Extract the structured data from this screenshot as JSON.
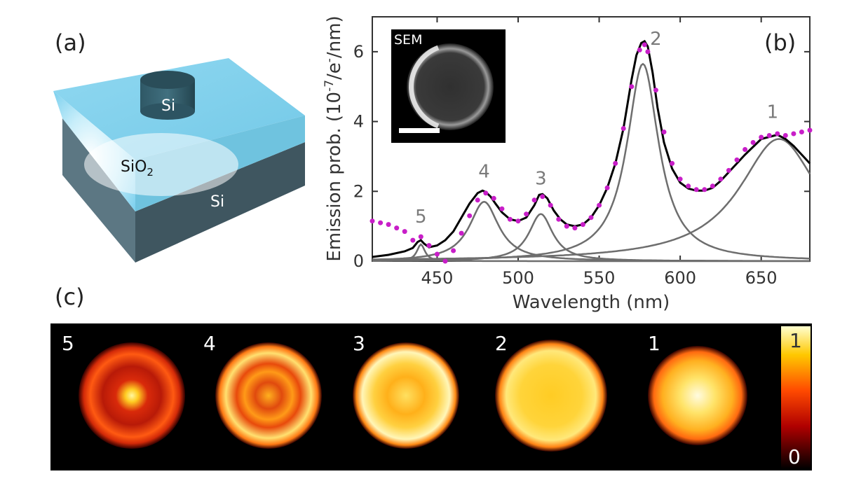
{
  "panels": {
    "a": "(a)",
    "b": "(b)",
    "c": "(c)"
  },
  "schematic": {
    "pillar_label": "Si",
    "oxide_label_main": "SiO",
    "oxide_label_sub": "2",
    "substrate_label": "Si"
  },
  "inset": {
    "label": "SEM"
  },
  "colors": {
    "data": "#c81ec8",
    "fit": "#000000",
    "components": "#6e6e6e",
    "oxide": "#7fd0ec",
    "substrate": "#4c6470"
  },
  "chart_data": {
    "type": "line",
    "title": "",
    "xlabel": "Wavelength (nm)",
    "ylabel_parts": {
      "main": "Emission prob. (10",
      "sup1": "-7",
      "mid": "/e",
      "sup2": "-",
      "end": "/nm)"
    },
    "xlim": [
      410,
      680
    ],
    "ylim": [
      0,
      7
    ],
    "xticks": [
      450,
      500,
      550,
      600,
      650
    ],
    "yticks": [
      0,
      2,
      4,
      6
    ],
    "peaks": [
      {
        "id": "1",
        "center": 661,
        "amplitude": 3.5,
        "width": 30
      },
      {
        "id": "2",
        "center": 577,
        "amplitude": 5.65,
        "width": 12
      },
      {
        "id": "3",
        "center": 514,
        "amplitude": 1.35,
        "width": 9
      },
      {
        "id": "4",
        "center": 479,
        "amplitude": 1.7,
        "width": 11
      },
      {
        "id": "5",
        "center": 440,
        "amplitude": 0.48,
        "width": 3
      }
    ],
    "peak_labels": [
      {
        "text": "1",
        "x": 657,
        "y": 4.1
      },
      {
        "text": "2",
        "x": 585,
        "y": 6.2
      },
      {
        "text": "3",
        "x": 514,
        "y": 2.2
      },
      {
        "text": "4",
        "x": 479,
        "y": 2.4
      },
      {
        "text": "5",
        "x": 440,
        "y": 1.1
      }
    ],
    "series": [
      {
        "name": "Measured (dots)",
        "x": [
          410,
          415,
          420,
          425,
          430,
          435,
          440,
          445,
          450,
          455,
          460,
          465,
          470,
          475,
          480,
          485,
          490,
          495,
          500,
          505,
          510,
          515,
          520,
          525,
          530,
          535,
          540,
          545,
          550,
          555,
          560,
          565,
          570,
          575,
          578,
          580,
          585,
          590,
          595,
          600,
          605,
          610,
          615,
          620,
          625,
          630,
          635,
          640,
          645,
          650,
          655,
          660,
          665,
          670,
          675,
          680
        ],
        "values": [
          1.15,
          1.1,
          1.05,
          0.95,
          0.85,
          0.6,
          0.7,
          0.45,
          0.2,
          0.0,
          0.3,
          0.8,
          1.3,
          1.75,
          1.95,
          1.8,
          1.5,
          1.2,
          1.15,
          1.35,
          1.75,
          1.85,
          1.6,
          1.2,
          1.0,
          0.95,
          1.05,
          1.25,
          1.6,
          2.1,
          2.8,
          3.8,
          5.0,
          6.05,
          6.2,
          6.0,
          4.9,
          3.7,
          2.8,
          2.35,
          2.15,
          2.05,
          2.05,
          2.15,
          2.35,
          2.6,
          2.9,
          3.2,
          3.4,
          3.55,
          3.6,
          3.65,
          3.6,
          3.65,
          3.7,
          3.75
        ]
      },
      {
        "name": "Fit",
        "x": [
          410,
          420,
          430,
          435,
          438,
          440,
          442,
          445,
          450,
          455,
          460,
          465,
          470,
          475,
          478,
          480,
          483,
          486,
          490,
          495,
          500,
          505,
          510,
          513,
          515,
          518,
          522,
          526,
          530,
          535,
          540,
          545,
          550,
          555,
          560,
          565,
          570,
          573,
          576,
          578,
          580,
          583,
          586,
          590,
          595,
          600,
          605,
          610,
          615,
          620,
          625,
          630,
          640,
          650,
          660,
          665,
          670,
          675,
          680
        ],
        "values": [
          0.12,
          0.18,
          0.28,
          0.38,
          0.55,
          0.6,
          0.5,
          0.4,
          0.45,
          0.6,
          0.85,
          1.25,
          1.65,
          1.95,
          2.02,
          1.98,
          1.85,
          1.65,
          1.4,
          1.2,
          1.15,
          1.25,
          1.6,
          1.9,
          1.92,
          1.8,
          1.45,
          1.2,
          1.05,
          1.0,
          1.05,
          1.25,
          1.6,
          2.1,
          2.8,
          3.8,
          5.2,
          5.9,
          6.25,
          6.3,
          6.15,
          5.4,
          4.4,
          3.4,
          2.65,
          2.25,
          2.08,
          2.02,
          2.02,
          2.1,
          2.3,
          2.55,
          3.05,
          3.5,
          3.62,
          3.5,
          3.3,
          3.05,
          2.8
        ]
      }
    ]
  },
  "maps": {
    "labels": [
      "5",
      "4",
      "3",
      "2",
      "1"
    ],
    "colorbar": {
      "max_label": "1",
      "min_label": "0"
    }
  }
}
